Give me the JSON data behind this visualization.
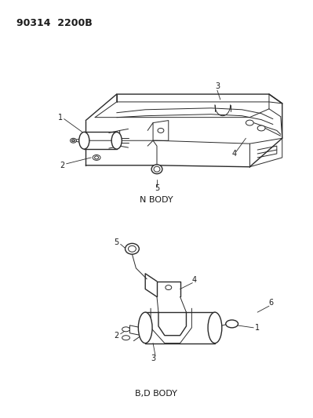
{
  "title_text": "90314  2200B",
  "background_color": "#ffffff",
  "line_color": "#2a2a2a",
  "label_color": "#1a1a1a",
  "label_fontsize": 7.0,
  "nbody_label": "N BODY",
  "bd_body_label": "B,D BODY"
}
